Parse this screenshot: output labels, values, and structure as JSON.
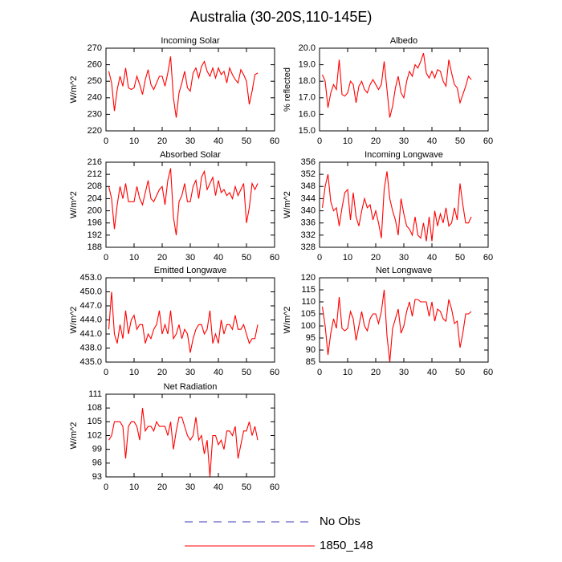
{
  "title": "Australia (30-20S,110-145E)",
  "legend": [
    {
      "name": "No Obs",
      "color": "#3c3cb4",
      "dashed": true
    },
    {
      "name": "1850_148",
      "color": "#ff0000",
      "dashed": false
    }
  ],
  "chart_data": [
    {
      "type": "line",
      "title": "Incoming Solar",
      "ylabel": "W/m^2",
      "color": "#ff0000",
      "x": [
        1,
        2,
        3,
        4,
        5,
        6,
        7,
        8,
        9,
        10,
        11,
        12,
        13,
        14,
        15,
        16,
        17,
        18,
        19,
        20,
        21,
        22,
        23,
        24,
        25,
        26,
        27,
        28,
        29,
        30,
        31,
        32,
        33,
        34,
        35,
        36,
        37,
        38,
        39,
        40,
        41,
        42,
        43,
        44,
        45,
        46,
        47,
        48,
        49,
        50,
        51,
        52,
        53,
        54
      ],
      "values": [
        256,
        249,
        232,
        245,
        253,
        247,
        258,
        246,
        245,
        246,
        253,
        248,
        242,
        251,
        257,
        248,
        245,
        249,
        253,
        253,
        247,
        255,
        265,
        240,
        228,
        243,
        249,
        256,
        246,
        244,
        255,
        258,
        252,
        259,
        262,
        256,
        253,
        258,
        252,
        258,
        254,
        256,
        249,
        258,
        254,
        251,
        249,
        257,
        254,
        250,
        236,
        244,
        254,
        255
      ],
      "xlim": [
        0,
        60
      ],
      "xticks": [
        0,
        10,
        20,
        30,
        40,
        50,
        60
      ],
      "ylim": [
        220,
        270
      ],
      "yticks": [
        220,
        230,
        240,
        250,
        260,
        270
      ]
    },
    {
      "type": "line",
      "title": "Albedo",
      "ylabel": "% reflected",
      "color": "#ff0000",
      "x": [
        1,
        2,
        3,
        4,
        5,
        6,
        7,
        8,
        9,
        10,
        11,
        12,
        13,
        14,
        15,
        16,
        17,
        18,
        19,
        20,
        21,
        22,
        23,
        24,
        25,
        26,
        27,
        28,
        29,
        30,
        31,
        32,
        33,
        34,
        35,
        36,
        37,
        38,
        39,
        40,
        41,
        42,
        43,
        44,
        45,
        46,
        47,
        48,
        49,
        50,
        51,
        52,
        53,
        54
      ],
      "values": [
        18.4,
        18.0,
        16.4,
        17.3,
        17.8,
        17.5,
        19.3,
        17.2,
        17.1,
        17.3,
        18.0,
        17.8,
        16.7,
        17.7,
        18.0,
        17.5,
        17.3,
        17.8,
        18.1,
        17.8,
        17.5,
        17.8,
        19.2,
        17.5,
        15.8,
        16.5,
        17.6,
        18.3,
        17.3,
        17.0,
        18.0,
        18.6,
        18.3,
        19.0,
        18.8,
        19.2,
        19.7,
        18.5,
        18.2,
        18.6,
        18.2,
        18.7,
        18.6,
        18.0,
        17.7,
        19.3,
        18.5,
        17.8,
        17.6,
        16.7,
        17.2,
        17.7,
        18.3,
        18.1
      ],
      "xlim": [
        0,
        60
      ],
      "xticks": [
        0,
        10,
        20,
        30,
        40,
        50,
        60
      ],
      "ylim": [
        15,
        20
      ],
      "yticks": [
        {
          "value": 15,
          "label": "15.0"
        },
        {
          "value": 16,
          "label": "16.0"
        },
        {
          "value": 17,
          "label": "17.0"
        },
        {
          "value": 18,
          "label": "18.0"
        },
        {
          "value": 19,
          "label": "19.0"
        },
        {
          "value": 20,
          "label": "20.0"
        }
      ]
    },
    {
      "type": "line",
      "title": "Absorbed Solar",
      "ylabel": "W/m^2",
      "color": "#ff0000",
      "x": [
        1,
        2,
        3,
        4,
        5,
        6,
        7,
        8,
        9,
        10,
        11,
        12,
        13,
        14,
        15,
        16,
        17,
        18,
        19,
        20,
        21,
        22,
        23,
        24,
        25,
        26,
        27,
        28,
        29,
        30,
        31,
        32,
        33,
        34,
        35,
        36,
        37,
        38,
        39,
        40,
        41,
        42,
        43,
        44,
        45,
        46,
        47,
        48,
        49,
        50,
        51,
        52,
        53,
        54
      ],
      "values": [
        208,
        204,
        194,
        202,
        208,
        204,
        209,
        203,
        203,
        203,
        208,
        204,
        202,
        206,
        210,
        204,
        203,
        205,
        207,
        208,
        202,
        210,
        214,
        198,
        192,
        203,
        205,
        209,
        203,
        203,
        208,
        210,
        204,
        211,
        213,
        207,
        209,
        211,
        205,
        210,
        206,
        207,
        205,
        206,
        204,
        208,
        205,
        207,
        209,
        196,
        201,
        209,
        207,
        209
      ],
      "xlim": [
        0,
        60
      ],
      "xticks": [
        0,
        10,
        20,
        30,
        40,
        50,
        60
      ],
      "ylim": [
        188,
        216
      ],
      "yticks": [
        188,
        192,
        196,
        200,
        204,
        208,
        212,
        216
      ]
    },
    {
      "type": "line",
      "title": "Incoming Longwave",
      "ylabel": "W/m^2",
      "color": "#ff0000",
      "x": [
        1,
        2,
        3,
        4,
        5,
        6,
        7,
        8,
        9,
        10,
        11,
        12,
        13,
        14,
        15,
        16,
        17,
        18,
        19,
        20,
        21,
        22,
        23,
        24,
        25,
        26,
        27,
        28,
        29,
        30,
        31,
        32,
        33,
        34,
        35,
        36,
        37,
        38,
        39,
        40,
        41,
        42,
        43,
        44,
        45,
        46,
        47,
        48,
        49,
        50,
        51,
        52,
        53,
        54
      ],
      "values": [
        341,
        348,
        352,
        343,
        340,
        341,
        335,
        341,
        346,
        347,
        337,
        346,
        338,
        335,
        340,
        344,
        341,
        342,
        337,
        340,
        336,
        331,
        347,
        353,
        344,
        340,
        337,
        332,
        344,
        339,
        335,
        334,
        332,
        338,
        332,
        331,
        336,
        330,
        338,
        330,
        340,
        335,
        339,
        336,
        341,
        335,
        336,
        341,
        337,
        349,
        342,
        336,
        336,
        338
      ],
      "xlim": [
        0,
        60
      ],
      "xticks": [
        0,
        10,
        20,
        30,
        40,
        50,
        60
      ],
      "ylim": [
        328,
        356
      ],
      "yticks": [
        328,
        332,
        336,
        340,
        344,
        348,
        352,
        356
      ]
    },
    {
      "type": "line",
      "title": "Emitted Longwave",
      "ylabel": "W/m^2",
      "color": "#ff0000",
      "x": [
        1,
        2,
        3,
        4,
        5,
        6,
        7,
        8,
        9,
        10,
        11,
        12,
        13,
        14,
        15,
        16,
        17,
        18,
        19,
        20,
        21,
        22,
        23,
        24,
        25,
        26,
        27,
        28,
        29,
        30,
        31,
        32,
        33,
        34,
        35,
        36,
        37,
        38,
        39,
        40,
        41,
        42,
        43,
        44,
        45,
        46,
        47,
        48,
        49,
        50,
        51,
        52,
        53,
        54
      ],
      "values": [
        442,
        450,
        441,
        439,
        443,
        440,
        446,
        441,
        444,
        445,
        442,
        443,
        443,
        439,
        441,
        440,
        442,
        443,
        446,
        441,
        443,
        441,
        446,
        440,
        441,
        443,
        440,
        442,
        441,
        437,
        440,
        442,
        443,
        443,
        441,
        442,
        446,
        439,
        441,
        439,
        444,
        441,
        443,
        443,
        442,
        445,
        442,
        442,
        443,
        441,
        439,
        440,
        440,
        443
      ],
      "xlim": [
        0,
        60
      ],
      "xticks": [
        0,
        10,
        20,
        30,
        40,
        50,
        60
      ],
      "ylim": [
        435,
        453
      ],
      "yticks": [
        {
          "value": 435,
          "label": "435.0"
        },
        {
          "value": 438,
          "label": "438.0"
        },
        {
          "value": 441,
          "label": "441.0"
        },
        {
          "value": 444,
          "label": "444.0"
        },
        {
          "value": 447,
          "label": "447.0"
        },
        {
          "value": 450,
          "label": "450.0"
        },
        {
          "value": 453,
          "label": "453.0"
        }
      ]
    },
    {
      "type": "line",
      "title": "Net Longwave",
      "ylabel": "W/m^2",
      "color": "#ff0000",
      "x": [
        1,
        2,
        3,
        4,
        5,
        6,
        7,
        8,
        9,
        10,
        11,
        12,
        13,
        14,
        15,
        16,
        17,
        18,
        19,
        20,
        21,
        22,
        23,
        24,
        25,
        26,
        27,
        28,
        29,
        30,
        31,
        32,
        33,
        34,
        35,
        36,
        37,
        38,
        39,
        40,
        41,
        42,
        43,
        44,
        45,
        46,
        47,
        48,
        49,
        50,
        51,
        52,
        53,
        54
      ],
      "values": [
        108,
        100,
        88,
        97,
        103,
        99,
        112,
        99,
        98,
        99,
        106,
        103,
        94,
        100,
        106,
        100,
        98,
        103,
        105,
        105,
        101,
        106,
        115,
        96,
        85,
        99,
        103,
        107,
        97,
        100,
        106,
        110,
        104,
        111,
        111,
        110,
        110,
        110,
        104,
        110,
        102,
        107,
        106,
        103,
        102,
        111,
        107,
        101,
        102,
        91,
        97,
        105,
        105,
        106
      ],
      "xlim": [
        0,
        60
      ],
      "xticks": [
        0,
        10,
        20,
        30,
        40,
        50,
        60
      ],
      "ylim": [
        85,
        120
      ],
      "yticks": [
        85,
        90,
        95,
        100,
        105,
        110,
        115,
        120
      ]
    },
    {
      "type": "line",
      "title": "Net Radiation",
      "ylabel": "W/m^2",
      "color": "#ff0000",
      "x": [
        1,
        2,
        3,
        4,
        5,
        6,
        7,
        8,
        9,
        10,
        11,
        12,
        13,
        14,
        15,
        16,
        17,
        18,
        19,
        20,
        21,
        22,
        23,
        24,
        25,
        26,
        27,
        28,
        29,
        30,
        31,
        32,
        33,
        34,
        35,
        36,
        37,
        38,
        39,
        40,
        41,
        42,
        43,
        44,
        45,
        46,
        47,
        48,
        49,
        50,
        51,
        52,
        53,
        54
      ],
      "values": [
        101,
        102,
        105,
        105,
        105,
        104,
        97,
        104,
        105,
        105,
        104,
        101,
        108,
        103,
        104,
        104,
        103,
        105,
        104,
        104,
        104,
        102,
        105,
        99,
        103,
        106,
        106,
        104,
        102,
        101,
        102,
        106,
        101,
        102,
        98,
        101,
        93,
        102,
        102,
        100,
        101,
        99,
        103,
        103,
        102,
        104,
        97,
        100,
        103,
        103,
        105,
        102,
        104,
        101
      ],
      "xlim": [
        0,
        60
      ],
      "xticks": [
        0,
        10,
        20,
        30,
        40,
        50,
        60
      ],
      "ylim": [
        93,
        111
      ],
      "yticks": [
        93,
        96,
        99,
        102,
        105,
        108,
        111
      ]
    }
  ]
}
